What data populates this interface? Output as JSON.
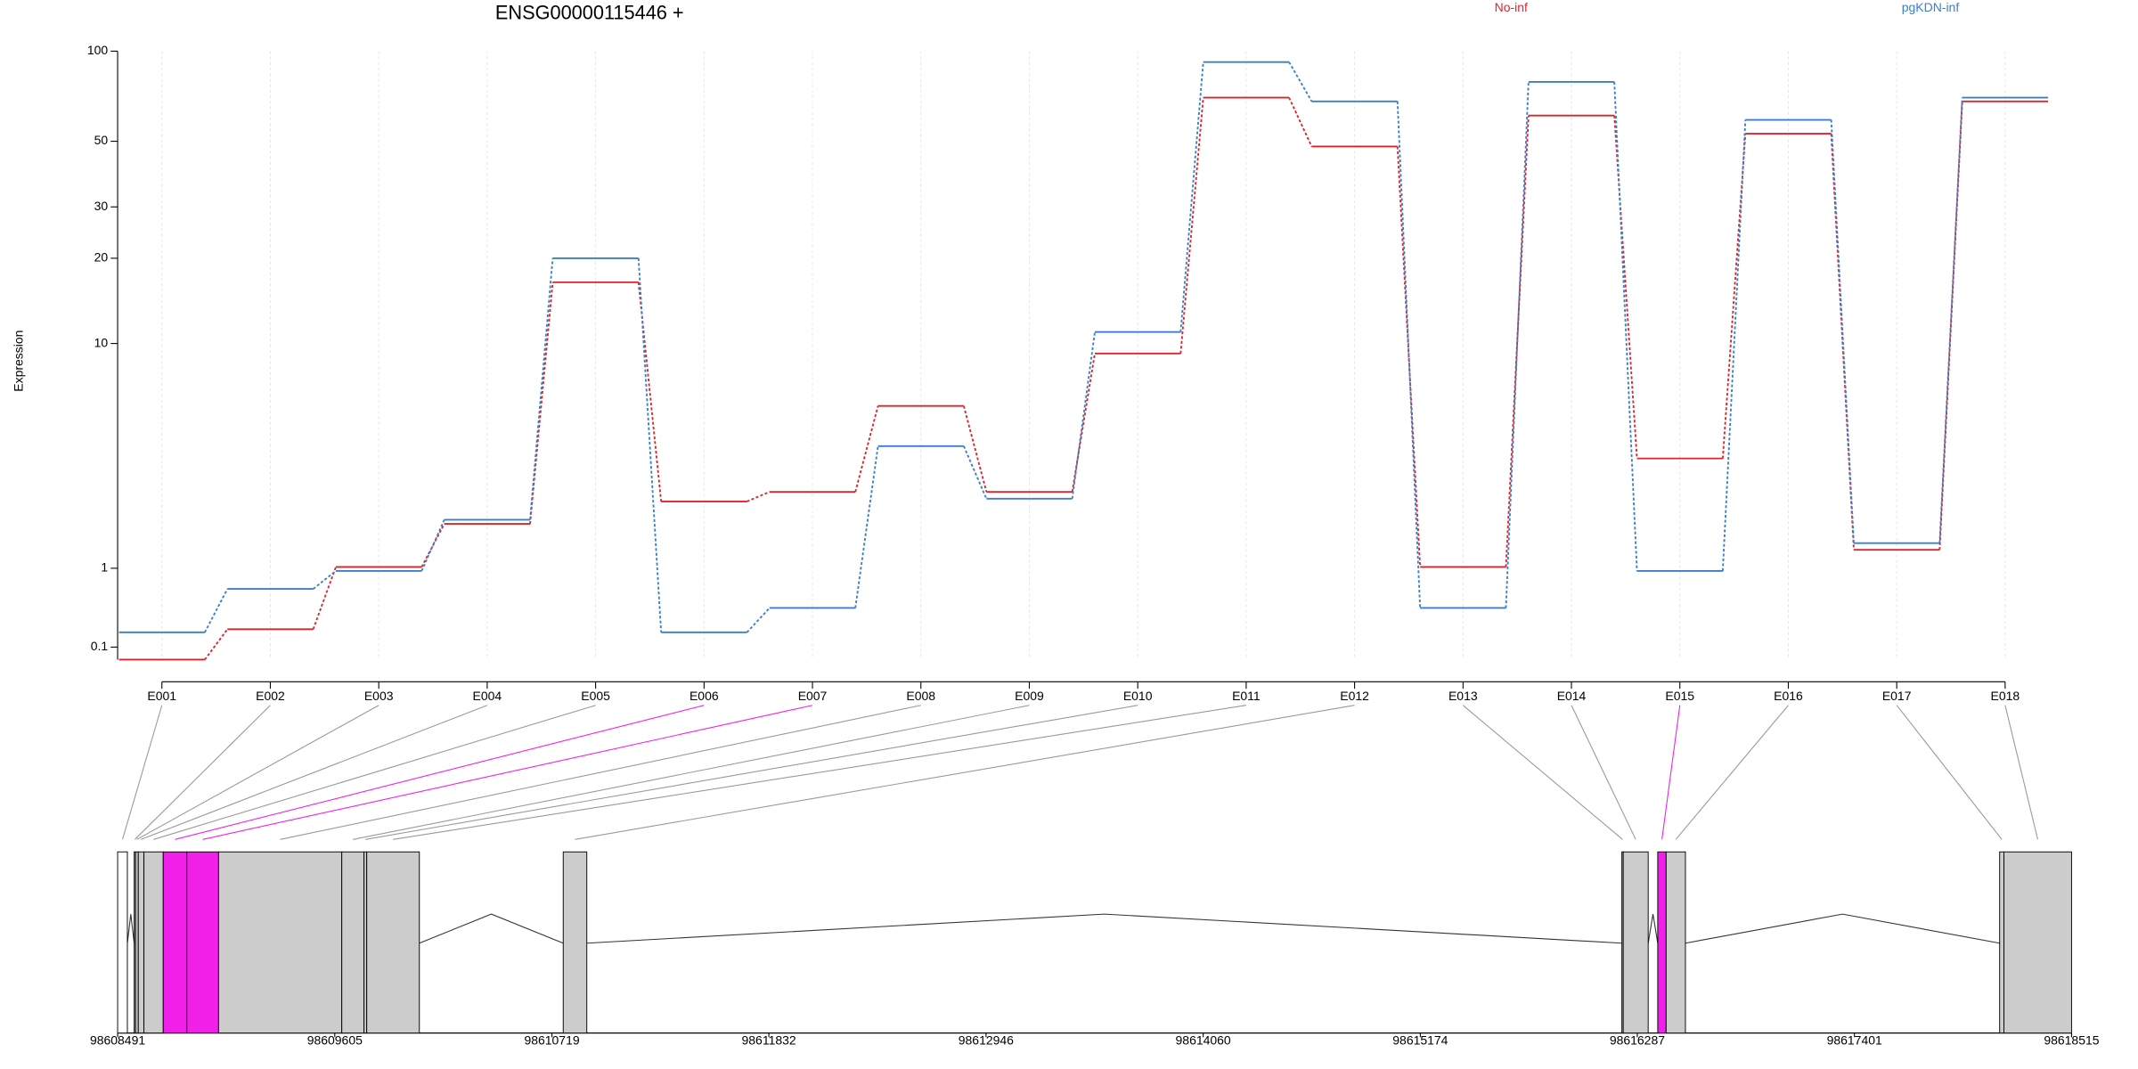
{
  "chart_data": [
    {
      "type": "step",
      "title": "ENSG00000115446 +",
      "y_label": "Expression",
      "yscale": "log(x+1)",
      "categories": [
        "E001",
        "E002",
        "E003",
        "E004",
        "E005",
        "E006",
        "E007",
        "E008",
        "E009",
        "E010",
        "E011",
        "E012",
        "E013",
        "E014",
        "E015",
        "E016",
        "E017",
        "E018"
      ],
      "series": [
        {
          "name": "No-inf",
          "color": "#d9262b",
          "values": [
            0,
            0.26,
            1.02,
            1.8,
            16.5,
            2.32,
            2.57,
            5.85,
            2.57,
            9.2,
            70,
            48,
            1.02,
            61,
            3.6,
            53,
            1.3,
            68
          ]
        },
        {
          "name": "pgKDN-inf",
          "color": "#3c7fc8",
          "values": [
            0.23,
            0.71,
            0.96,
            1.89,
            20,
            0.23,
            0.48,
            4.05,
            2.39,
            11,
            92,
            68,
            0.48,
            79,
            0.96,
            59,
            1.42,
            70
          ]
        }
      ],
      "ylim": [
        0,
        100
      ],
      "yticks": [
        0.1,
        1,
        10,
        20,
        30,
        50,
        100
      ],
      "grid": true
    },
    {
      "type": "gene_model",
      "xlim": [
        98608491,
        98618515
      ],
      "xticks": [
        98608491,
        98609605,
        98610719,
        98611832,
        98612946,
        98614060,
        98615174,
        98616287,
        98617401,
        98618515
      ],
      "exons": [
        {
          "start": 98608491,
          "end": 98608541,
          "color": "#ffffff"
        },
        {
          "start": 98608576,
          "end": 98608583,
          "color": "#cccccc"
        },
        {
          "start": 98608583,
          "end": 98608597,
          "color": "#cccccc"
        },
        {
          "start": 98608597,
          "end": 98608626,
          "color": "#cccccc"
        },
        {
          "start": 98608626,
          "end": 98608725,
          "color": "#cccccc"
        },
        {
          "start": 98608725,
          "end": 98608846,
          "color": "#f020e8"
        },
        {
          "start": 98608846,
          "end": 98609009,
          "color": "#f020e8"
        },
        {
          "start": 98609009,
          "end": 98609641,
          "color": "#cccccc"
        },
        {
          "start": 98609641,
          "end": 98609755,
          "color": "#cccccc"
        },
        {
          "start": 98609755,
          "end": 98609769,
          "color": "#cccccc"
        },
        {
          "start": 98609769,
          "end": 98610039,
          "color": "#cccccc"
        },
        {
          "start": 98610777,
          "end": 98610898,
          "color": "#cccccc"
        },
        {
          "start": 98616208,
          "end": 98616215,
          "color": "#cccccc"
        },
        {
          "start": 98616215,
          "end": 98616343,
          "color": "#cccccc"
        },
        {
          "start": 98616392,
          "end": 98616435,
          "color": "#f020e8"
        },
        {
          "start": 98616435,
          "end": 98616534,
          "color": "#cccccc"
        },
        {
          "start": 98618146,
          "end": 98618168,
          "color": "#cccccc"
        },
        {
          "start": 98618168,
          "end": 98618515,
          "color": "#cccccc"
        }
      ]
    }
  ]
}
